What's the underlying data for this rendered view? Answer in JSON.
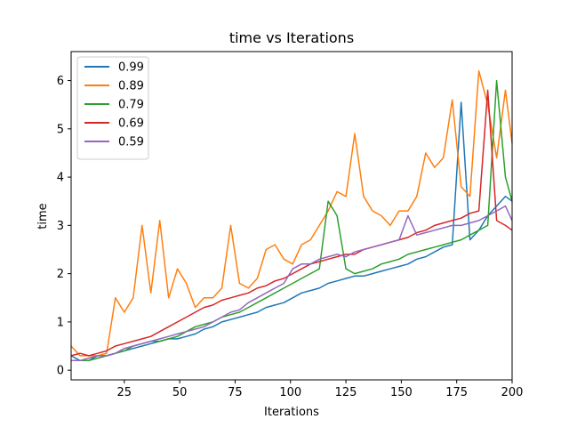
{
  "chart_data": {
    "type": "line",
    "title": "time vs Iterations",
    "xlabel": "Iterations",
    "ylabel": "time",
    "xlim": [
      1,
      200
    ],
    "ylim": [
      -0.2,
      6.6
    ],
    "xticks": [
      25,
      50,
      75,
      100,
      125,
      150,
      175,
      200
    ],
    "yticks": [
      0,
      1,
      2,
      3,
      4,
      5,
      6
    ],
    "legend_position": "top-left",
    "grid": false,
    "x": [
      1,
      5,
      9,
      13,
      17,
      21,
      25,
      29,
      33,
      37,
      41,
      45,
      49,
      53,
      57,
      61,
      65,
      69,
      73,
      77,
      81,
      85,
      89,
      93,
      97,
      101,
      105,
      109,
      113,
      117,
      121,
      125,
      129,
      133,
      137,
      141,
      145,
      149,
      153,
      157,
      161,
      165,
      169,
      173,
      177,
      181,
      185,
      189,
      193,
      197,
      200
    ],
    "series": [
      {
        "name": "0.99",
        "color": "#1f77b4",
        "values": [
          0.3,
          0.2,
          0.2,
          0.3,
          0.3,
          0.35,
          0.4,
          0.45,
          0.5,
          0.55,
          0.6,
          0.65,
          0.65,
          0.7,
          0.75,
          0.85,
          0.9,
          1.0,
          1.05,
          1.1,
          1.15,
          1.2,
          1.3,
          1.35,
          1.4,
          1.5,
          1.6,
          1.65,
          1.7,
          1.8,
          1.85,
          1.9,
          1.95,
          1.95,
          2.0,
          2.05,
          2.1,
          2.15,
          2.2,
          2.3,
          2.35,
          2.45,
          2.55,
          2.6,
          5.55,
          2.7,
          2.9,
          3.2,
          3.4,
          3.6,
          3.5
        ]
      },
      {
        "name": "0.89",
        "color": "#ff7f0e",
        "values": [
          0.5,
          0.3,
          0.3,
          0.3,
          0.35,
          1.5,
          1.2,
          1.5,
          3.0,
          1.6,
          3.1,
          1.5,
          2.1,
          1.8,
          1.3,
          1.5,
          1.5,
          1.7,
          3.0,
          1.8,
          1.7,
          1.9,
          2.5,
          2.6,
          2.3,
          2.2,
          2.6,
          2.7,
          3.0,
          3.3,
          3.7,
          3.6,
          4.9,
          3.6,
          3.3,
          3.2,
          3.0,
          3.3,
          3.3,
          3.6,
          4.5,
          4.2,
          4.4,
          5.6,
          3.8,
          3.6,
          6.2,
          5.5,
          4.4,
          5.8,
          4.7
        ]
      },
      {
        "name": "0.79",
        "color": "#2ca02c",
        "values": [
          0.2,
          0.2,
          0.2,
          0.25,
          0.3,
          0.35,
          0.4,
          0.5,
          0.55,
          0.6,
          0.6,
          0.65,
          0.7,
          0.8,
          0.9,
          0.95,
          1.0,
          1.1,
          1.15,
          1.2,
          1.3,
          1.4,
          1.5,
          1.6,
          1.7,
          1.8,
          1.9,
          2.0,
          2.1,
          3.5,
          3.2,
          2.1,
          2.0,
          2.05,
          2.1,
          2.2,
          2.25,
          2.3,
          2.4,
          2.45,
          2.5,
          2.55,
          2.6,
          2.65,
          2.7,
          2.8,
          2.9,
          3.0,
          6.0,
          4.0,
          3.5
        ]
      },
      {
        "name": "0.69",
        "color": "#d62728",
        "values": [
          0.3,
          0.35,
          0.3,
          0.35,
          0.4,
          0.5,
          0.55,
          0.6,
          0.65,
          0.7,
          0.8,
          0.9,
          1.0,
          1.1,
          1.2,
          1.3,
          1.35,
          1.45,
          1.5,
          1.55,
          1.6,
          1.7,
          1.75,
          1.85,
          1.9,
          2.0,
          2.1,
          2.2,
          2.25,
          2.3,
          2.35,
          2.4,
          2.4,
          2.5,
          2.55,
          2.6,
          2.65,
          2.7,
          2.75,
          2.85,
          2.9,
          3.0,
          3.05,
          3.1,
          3.15,
          3.25,
          3.3,
          5.8,
          3.1,
          3.0,
          2.9
        ]
      },
      {
        "name": "0.59",
        "color": "#9467bd",
        "values": [
          0.2,
          0.2,
          0.25,
          0.3,
          0.3,
          0.35,
          0.45,
          0.5,
          0.55,
          0.6,
          0.65,
          0.7,
          0.75,
          0.8,
          0.85,
          0.9,
          1.0,
          1.1,
          1.2,
          1.25,
          1.4,
          1.5,
          1.6,
          1.7,
          1.8,
          2.1,
          2.2,
          2.2,
          2.3,
          2.35,
          2.4,
          2.35,
          2.45,
          2.5,
          2.55,
          2.6,
          2.65,
          2.7,
          3.2,
          2.8,
          2.85,
          2.9,
          2.95,
          3.0,
          3.0,
          3.05,
          3.1,
          3.2,
          3.3,
          3.4,
          3.1
        ]
      }
    ]
  }
}
